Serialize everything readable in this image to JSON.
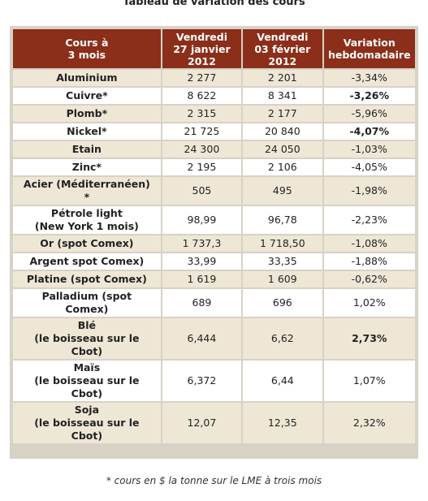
{
  "title": "Tableau de variation des cours",
  "header": {
    "col1": "Cours à\n3 mois",
    "col2": "Vendredi\n27 janvier\n2012",
    "col3": "Vendredi\n03 février\n2012",
    "col4": "Variation\nhebdomadaire"
  },
  "rows": [
    {
      "label": "Aluminium",
      "v1": "2 277",
      "v2": "2 201",
      "var": "-3,34%"
    },
    {
      "label": "Cuivre*",
      "v1": "8 622",
      "v2": "8 341",
      "var": "-3,26%"
    },
    {
      "label": "Plomb*",
      "v1": "2 315",
      "v2": "2 177",
      "var": "-5,96%"
    },
    {
      "label": "Nickel*",
      "v1": "21 725",
      "v2": "20 840",
      "var": "-4,07%"
    },
    {
      "label": "Etain",
      "v1": "24 300",
      "v2": "24 050",
      "var": "-1,03%"
    },
    {
      "label": "Zinc*",
      "v1": "2 195",
      "v2": "2 106",
      "var": "-4,05%"
    },
    {
      "label": "Acier (Méditerranéen)\n*",
      "v1": "505",
      "v2": "495",
      "var": "-1,98%"
    },
    {
      "label": "Pétrole light\n(New York 1 mois)",
      "v1": "98,99",
      "v2": "96,78",
      "var": "-2,23%"
    },
    {
      "label": "Or (spot Comex)",
      "v1": "1 737,3",
      "v2": "1 718,50",
      "var": "-1,08%"
    },
    {
      "label": "Argent spot Comex)",
      "v1": "33,99",
      "v2": "33,35",
      "var": "-1,88%"
    },
    {
      "label": "Platine (spot Comex)",
      "v1": "1 619",
      "v2": "1 609",
      "var": "-0,62%"
    },
    {
      "label": "Palladium (spot\nComex)",
      "v1": "689",
      "v2": "696",
      "var": "1,02%"
    },
    {
      "label": "Blé\n(le boisseau sur le\nCbot)",
      "v1": "6,444",
      "v2": "6,62",
      "var": "2,73%"
    },
    {
      "label": "Maïs\n(le boisseau sur le\nCbot)",
      "v1": "6,372",
      "v2": "6,44",
      "var": "1,07%"
    },
    {
      "label": "Soja\n(le boisseau sur le\nCbot)",
      "v1": "12,07",
      "v2": "12,35",
      "var": "2,32%"
    }
  ],
  "footnote": "* cours en $ la tonne sur le LME à trois mois"
}
